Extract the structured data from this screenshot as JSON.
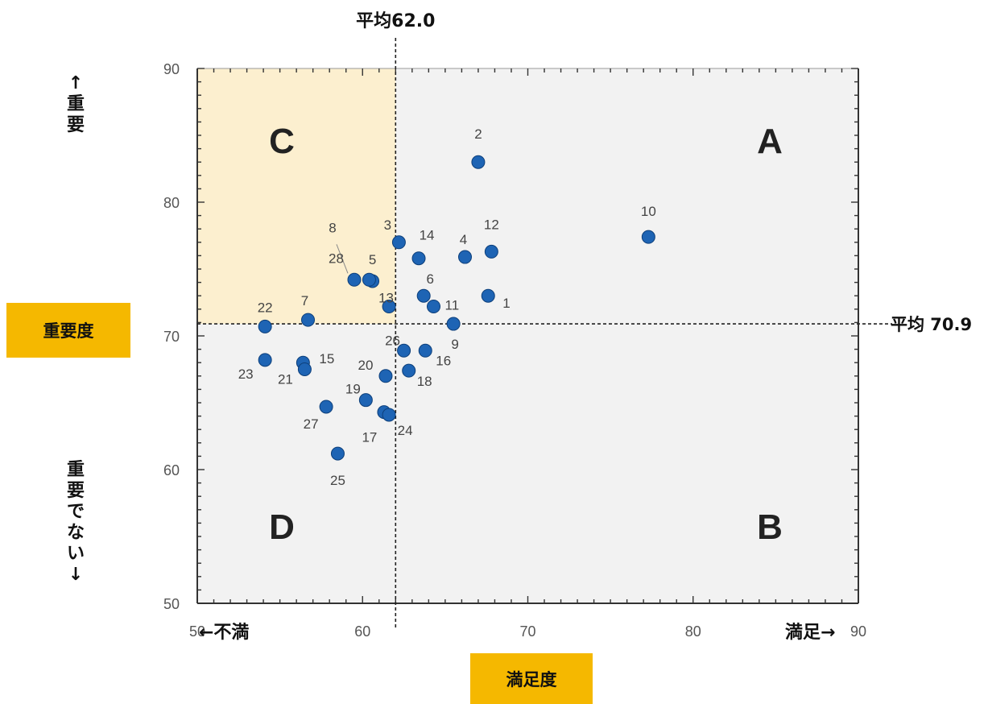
{
  "chart_data": {
    "type": "scatter",
    "xlabel": "満足度",
    "ylabel": "重要度",
    "xlim": [
      50,
      90
    ],
    "ylim": [
      50,
      90
    ],
    "x_ticks": [
      "50",
      "60",
      "70",
      "80",
      "90"
    ],
    "y_ticks": [
      "50",
      "60",
      "70",
      "80",
      "90"
    ],
    "x_avg": 62.0,
    "y_avg": 70.9,
    "x_avg_label": "平均62.0",
    "y_avg_label": "平均 70.9",
    "x_left_label": "←不満",
    "x_right_label": "満足→",
    "y_top_label": "↑重要",
    "y_bottom_label": "重要でない↓",
    "quadrants": [
      "A",
      "B",
      "C",
      "D"
    ],
    "highlight_color": "#fcefcf",
    "background_color": "#f2f2f2",
    "point_color": "#1e64b4",
    "label_box_color": "#f5b800",
    "points": [
      {
        "label": "1",
        "x": 67.6,
        "y": 73.0
      },
      {
        "label": "2",
        "x": 67.0,
        "y": 83.0
      },
      {
        "label": "3",
        "x": 62.2,
        "y": 77.0
      },
      {
        "label": "4",
        "x": 66.2,
        "y": 75.9
      },
      {
        "label": "5",
        "x": 60.6,
        "y": 74.1
      },
      {
        "label": "6",
        "x": 63.7,
        "y": 73.0
      },
      {
        "label": "7",
        "x": 56.7,
        "y": 71.2
      },
      {
        "label": "8",
        "x": 59.5,
        "y": 74.2
      },
      {
        "label": "9",
        "x": 65.5,
        "y": 70.9
      },
      {
        "label": "10",
        "x": 77.3,
        "y": 77.4
      },
      {
        "label": "11",
        "x": 64.3,
        "y": 72.2
      },
      {
        "label": "12",
        "x": 67.8,
        "y": 76.3
      },
      {
        "label": "13",
        "x": 61.6,
        "y": 72.2
      },
      {
        "label": "14",
        "x": 63.4,
        "y": 75.8
      },
      {
        "label": "15",
        "x": 56.4,
        "y": 68.0
      },
      {
        "label": "16",
        "x": 63.8,
        "y": 68.9
      },
      {
        "label": "17",
        "x": 61.3,
        "y": 64.3
      },
      {
        "label": "18",
        "x": 62.8,
        "y": 67.4
      },
      {
        "label": "19",
        "x": 60.2,
        "y": 65.2
      },
      {
        "label": "20",
        "x": 61.4,
        "y": 67.0
      },
      {
        "label": "21",
        "x": 56.5,
        "y": 67.5
      },
      {
        "label": "22",
        "x": 54.1,
        "y": 70.7
      },
      {
        "label": "23",
        "x": 54.1,
        "y": 68.2
      },
      {
        "label": "24",
        "x": 61.6,
        "y": 64.1
      },
      {
        "label": "25",
        "x": 58.5,
        "y": 61.2
      },
      {
        "label": "26",
        "x": 62.5,
        "y": 68.9
      },
      {
        "label": "27",
        "x": 57.8,
        "y": 64.7
      },
      {
        "label": "28",
        "x": 60.4,
        "y": 74.2
      }
    ]
  }
}
